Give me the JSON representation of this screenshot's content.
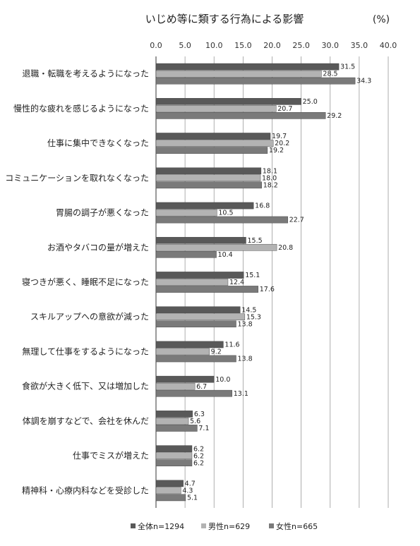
{
  "chart_data": {
    "type": "bar",
    "orientation": "horizontal",
    "title": "いじめ等に類する行為による影響",
    "unit": "(%)",
    "xlim": [
      0,
      40
    ],
    "xticks": [
      "0.0",
      "5.0",
      "10.0",
      "15.0",
      "20.0",
      "25.0",
      "30.0",
      "35.0",
      "40.0"
    ],
    "grid": true,
    "legend_position": "bottom",
    "categories": [
      "退職・転職を考えるようになった",
      "慢性的な疲れを感じるようになった",
      "仕事に集中できなくなった",
      "コミュニケーションを取れなくなった",
      "胃腸の調子が悪くなった",
      "お酒やタバコの量が増えた",
      "寝つきが悪く、睡眠不足になった",
      "スキルアップへの意欲が減った",
      "無理して仕事をするようになった",
      "食欲が大きく低下、又は増加した",
      "体調を崩すなどで、会社を休んだ",
      "仕事でミスが増えた",
      "精神科・心療内科などを受診した"
    ],
    "series": [
      {
        "name": "全体n=1294",
        "color": "#595959",
        "values": [
          31.5,
          25.0,
          19.7,
          18.1,
          16.8,
          15.5,
          15.1,
          14.5,
          11.6,
          10.0,
          6.3,
          6.2,
          4.7
        ]
      },
      {
        "name": "男性n=629",
        "color": "#b3b3b3",
        "values": [
          28.5,
          20.7,
          20.2,
          18.0,
          10.5,
          20.8,
          12.4,
          15.3,
          9.2,
          6.7,
          5.6,
          6.2,
          4.3
        ]
      },
      {
        "name": "女性n=665",
        "color": "#7a7a7a",
        "values": [
          34.3,
          29.2,
          19.2,
          18.2,
          22.7,
          10.4,
          17.6,
          13.8,
          13.8,
          13.1,
          7.1,
          6.2,
          5.1
        ]
      }
    ]
  }
}
